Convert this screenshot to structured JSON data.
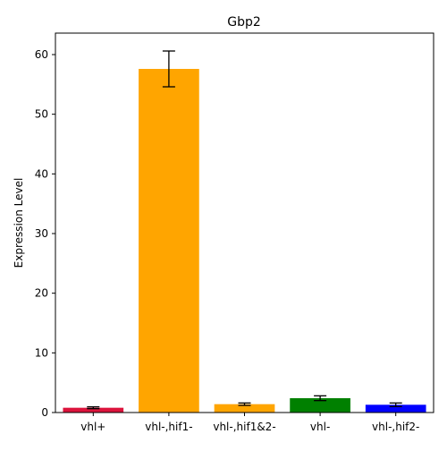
{
  "chart_data": {
    "type": "bar",
    "title": "Gbp2",
    "xlabel": "",
    "ylabel": "Expression Level",
    "categories": [
      "vhl+",
      "vhl-,hif1-",
      "vhl-,hif1&2-",
      "vhl-",
      "vhl-,hif2-"
    ],
    "values": [
      0.8,
      57.6,
      1.4,
      2.4,
      1.3
    ],
    "errors": [
      0.15,
      3.0,
      0.2,
      0.4,
      0.3
    ],
    "colors": [
      "#dc143c",
      "#ffa500",
      "#ffa500",
      "#008000",
      "#0000ff"
    ],
    "ylim": [
      0,
      63.6
    ],
    "yticks": [
      0,
      10,
      20,
      30,
      40,
      50,
      60
    ],
    "grid": false,
    "legend": "none"
  }
}
